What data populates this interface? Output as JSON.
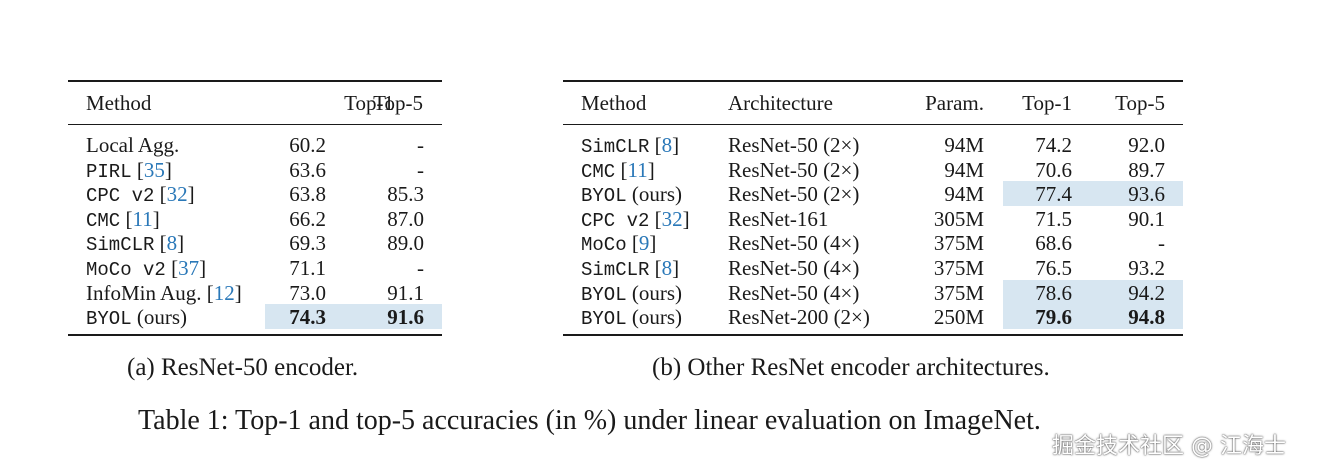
{
  "table_a": {
    "caption": "(a) ResNet-50 encoder.",
    "headers": {
      "method": "Method",
      "top1": "Top-1",
      "top5": "Top-5"
    },
    "rows": [
      {
        "name": "Local Agg.",
        "mono": false,
        "ref": "",
        "top1": "60.2",
        "top5": "-",
        "highlight": false,
        "bold": false
      },
      {
        "name": "PIRL",
        "mono": true,
        "ref": "35",
        "top1": "63.6",
        "top5": "-",
        "highlight": false,
        "bold": false
      },
      {
        "name": "CPC v2",
        "mono": true,
        "ref": "32",
        "top1": "63.8",
        "top5": "85.3",
        "highlight": false,
        "bold": false
      },
      {
        "name": "CMC",
        "mono": true,
        "ref": "11",
        "top1": "66.2",
        "top5": "87.0",
        "highlight": false,
        "bold": false
      },
      {
        "name": "SimCLR",
        "mono": true,
        "ref": "8",
        "top1": "69.3",
        "top5": "89.0",
        "highlight": false,
        "bold": false
      },
      {
        "name": "MoCo v2",
        "mono": true,
        "ref": "37",
        "top1": "71.1",
        "top5": "-",
        "highlight": false,
        "bold": false
      },
      {
        "name": "InfoMin Aug.",
        "mono": false,
        "ref": "12",
        "top1": "73.0",
        "top5": "91.1",
        "highlight": false,
        "bold": false
      },
      {
        "name": "BYOL",
        "mono": true,
        "ref": "",
        "suffix": "(ours)",
        "top1": "74.3",
        "top5": "91.6",
        "highlight": true,
        "bold": true
      }
    ]
  },
  "table_b": {
    "caption": "(b) Other ResNet encoder architectures.",
    "headers": {
      "method": "Method",
      "arch": "Architecture",
      "param": "Param.",
      "top1": "Top-1",
      "top5": "Top-5"
    },
    "rows": [
      {
        "name": "SimCLR",
        "ref": "8",
        "suffix": "",
        "arch": "ResNet-50 (2×)",
        "param": "94M",
        "top1": "74.2",
        "top5": "92.0",
        "highlight": false,
        "bold": false
      },
      {
        "name": "CMC",
        "ref": "11",
        "suffix": "",
        "arch": "ResNet-50 (2×)",
        "param": "94M",
        "top1": "70.6",
        "top5": "89.7",
        "highlight": false,
        "bold": false
      },
      {
        "name": "BYOL",
        "ref": "",
        "suffix": "(ours)",
        "arch": "ResNet-50 (2×)",
        "param": "94M",
        "top1": "77.4",
        "top5": "93.6",
        "highlight": true,
        "bold": false
      },
      {
        "name": "CPC v2",
        "ref": "32",
        "suffix": "",
        "arch": "ResNet-161",
        "param": "305M",
        "top1": "71.5",
        "top5": "90.1",
        "highlight": false,
        "bold": false
      },
      {
        "name": "MoCo",
        "ref": "9",
        "suffix": "",
        "arch": "ResNet-50 (4×)",
        "param": "375M",
        "top1": "68.6",
        "top5": "-",
        "highlight": false,
        "bold": false
      },
      {
        "name": "SimCLR",
        "ref": "8",
        "suffix": "",
        "arch": "ResNet-50 (4×)",
        "param": "375M",
        "top1": "76.5",
        "top5": "93.2",
        "highlight": false,
        "bold": false
      },
      {
        "name": "BYOL",
        "ref": "",
        "suffix": "(ours)",
        "arch": "ResNet-50 (4×)",
        "param": "375M",
        "top1": "78.6",
        "top5": "94.2",
        "highlight": true,
        "bold": false
      },
      {
        "name": "BYOL",
        "ref": "",
        "suffix": "(ours)",
        "arch": "ResNet-200 (2×)",
        "param": "250M",
        "top1": "79.6",
        "top5": "94.8",
        "highlight": true,
        "bold": true
      }
    ]
  },
  "main_caption": "Table 1: Top-1 and top-5 accuracies (in %) under linear evaluation on ImageNet.",
  "watermark": "掘金技术社区 @ 江海士",
  "colors": {
    "highlight": "#d7e6f1",
    "ref": "#2a78b8"
  }
}
